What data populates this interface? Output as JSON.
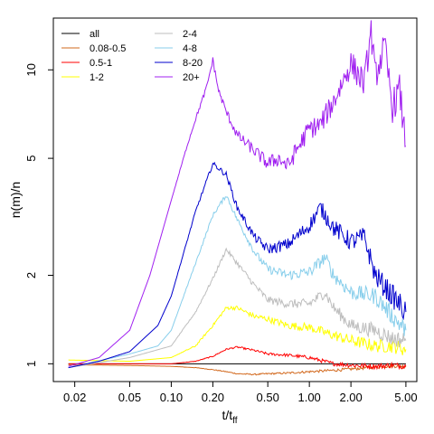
{
  "chart_data": {
    "type": "line",
    "xlabel": "t/t",
    "xlabel_sub": "ff",
    "ylabel": "n(m)/n",
    "x_scale": "log",
    "y_scale": "log",
    "xlim": [
      0.014,
      6.0
    ],
    "ylim": [
      0.87,
      15.0
    ],
    "x_ticks": [
      0.02,
      0.05,
      0.1,
      0.2,
      0.5,
      1.0,
      2.0,
      5.0
    ],
    "x_tick_labels": [
      "0.02",
      "0.05",
      "0.10",
      "0.20",
      "0.50",
      "1.00",
      "2.00",
      "5.00"
    ],
    "y_ticks": [
      1,
      2,
      5,
      10
    ],
    "y_tick_labels": [
      "1",
      "2",
      "5",
      "10"
    ],
    "grid": false,
    "legend_position": "top-left",
    "legend_columns": 2,
    "series": [
      {
        "name": "all",
        "color": "#000000",
        "x": [
          0.018,
          5.0
        ],
        "y": [
          1.0,
          1.0
        ]
      },
      {
        "name": "0.08-0.5",
        "color": "#d2691e",
        "x": [
          0.018,
          0.03,
          0.06,
          0.1,
          0.15,
          0.2,
          0.25,
          0.3,
          0.4,
          0.5,
          0.7,
          1.0,
          1.5,
          2.0,
          3.0,
          4.0,
          5.0
        ],
        "y": [
          0.99,
          0.99,
          0.985,
          0.98,
          0.97,
          0.955,
          0.94,
          0.925,
          0.92,
          0.925,
          0.93,
          0.94,
          0.95,
          0.96,
          0.975,
          0.985,
          0.98
        ]
      },
      {
        "name": "0.5-1",
        "color": "#ff0000",
        "x": [
          0.018,
          0.05,
          0.1,
          0.15,
          0.2,
          0.25,
          0.3,
          0.4,
          0.5,
          0.7,
          1.0,
          1.5,
          2.0,
          3.0,
          4.0,
          5.0
        ],
        "y": [
          1.0,
          1.0,
          1.0,
          1.02,
          1.06,
          1.12,
          1.14,
          1.11,
          1.08,
          1.07,
          1.05,
          1.0,
          0.99,
          0.98,
          0.99,
          0.98
        ]
      },
      {
        "name": "1-2",
        "color": "#ffff00",
        "x": [
          0.018,
          0.05,
          0.1,
          0.15,
          0.2,
          0.25,
          0.3,
          0.4,
          0.5,
          0.7,
          1.0,
          1.5,
          2.0,
          3.0,
          4.0,
          5.0
        ],
        "y": [
          1.03,
          1.02,
          1.05,
          1.15,
          1.35,
          1.55,
          1.55,
          1.45,
          1.42,
          1.35,
          1.33,
          1.25,
          1.2,
          1.15,
          1.15,
          1.12
        ]
      },
      {
        "name": "2-4",
        "color": "#bebebe",
        "x": [
          0.018,
          0.05,
          0.1,
          0.15,
          0.2,
          0.25,
          0.3,
          0.4,
          0.5,
          0.7,
          1.0,
          1.3,
          1.5,
          2.0,
          3.0,
          4.0,
          5.0
        ],
        "y": [
          0.97,
          1.05,
          1.15,
          1.5,
          1.95,
          2.45,
          2.2,
          1.85,
          1.65,
          1.6,
          1.6,
          1.75,
          1.55,
          1.35,
          1.3,
          1.22,
          1.2
        ]
      },
      {
        "name": "4-8",
        "color": "#87ceeb",
        "x": [
          0.018,
          0.05,
          0.08,
          0.1,
          0.15,
          0.2,
          0.25,
          0.3,
          0.4,
          0.5,
          0.7,
          1.0,
          1.3,
          1.5,
          2.0,
          3.0,
          4.0,
          5.0
        ],
        "y": [
          0.97,
          1.08,
          1.15,
          1.3,
          2.2,
          3.2,
          3.75,
          3.1,
          2.4,
          2.1,
          2.0,
          2.05,
          2.3,
          2.0,
          1.75,
          1.7,
          1.45,
          1.3
        ]
      },
      {
        "name": "8-20",
        "color": "#0000cd",
        "x": [
          0.018,
          0.03,
          0.05,
          0.08,
          0.1,
          0.15,
          0.2,
          0.25,
          0.3,
          0.4,
          0.5,
          0.7,
          1.0,
          1.2,
          1.5,
          2.0,
          2.5,
          3.0,
          4.0,
          5.0
        ],
        "y": [
          0.97,
          1.02,
          1.1,
          1.35,
          1.7,
          3.3,
          4.8,
          4.4,
          3.4,
          2.7,
          2.45,
          2.55,
          2.95,
          3.4,
          2.9,
          2.6,
          2.7,
          2.0,
          1.7,
          1.5
        ]
      },
      {
        "name": "20+",
        "color": "#a020f0",
        "x": [
          0.018,
          0.03,
          0.05,
          0.07,
          0.1,
          0.13,
          0.15,
          0.18,
          0.2,
          0.22,
          0.25,
          0.3,
          0.4,
          0.5,
          0.6,
          0.7,
          0.8,
          1.0,
          1.2,
          1.5,
          2.0,
          2.5,
          2.8,
          3.0,
          3.5,
          4.0,
          4.5,
          5.0
        ],
        "y": [
          0.98,
          1.05,
          1.3,
          2.0,
          3.6,
          5.5,
          6.8,
          8.7,
          10.8,
          8.5,
          7.2,
          6.0,
          5.3,
          4.8,
          5.0,
          4.7,
          5.3,
          6.3,
          6.5,
          7.8,
          10.5,
          9.0,
          13.5,
          9.5,
          12.0,
          7.5,
          8.5,
          5.5
        ]
      }
    ]
  }
}
